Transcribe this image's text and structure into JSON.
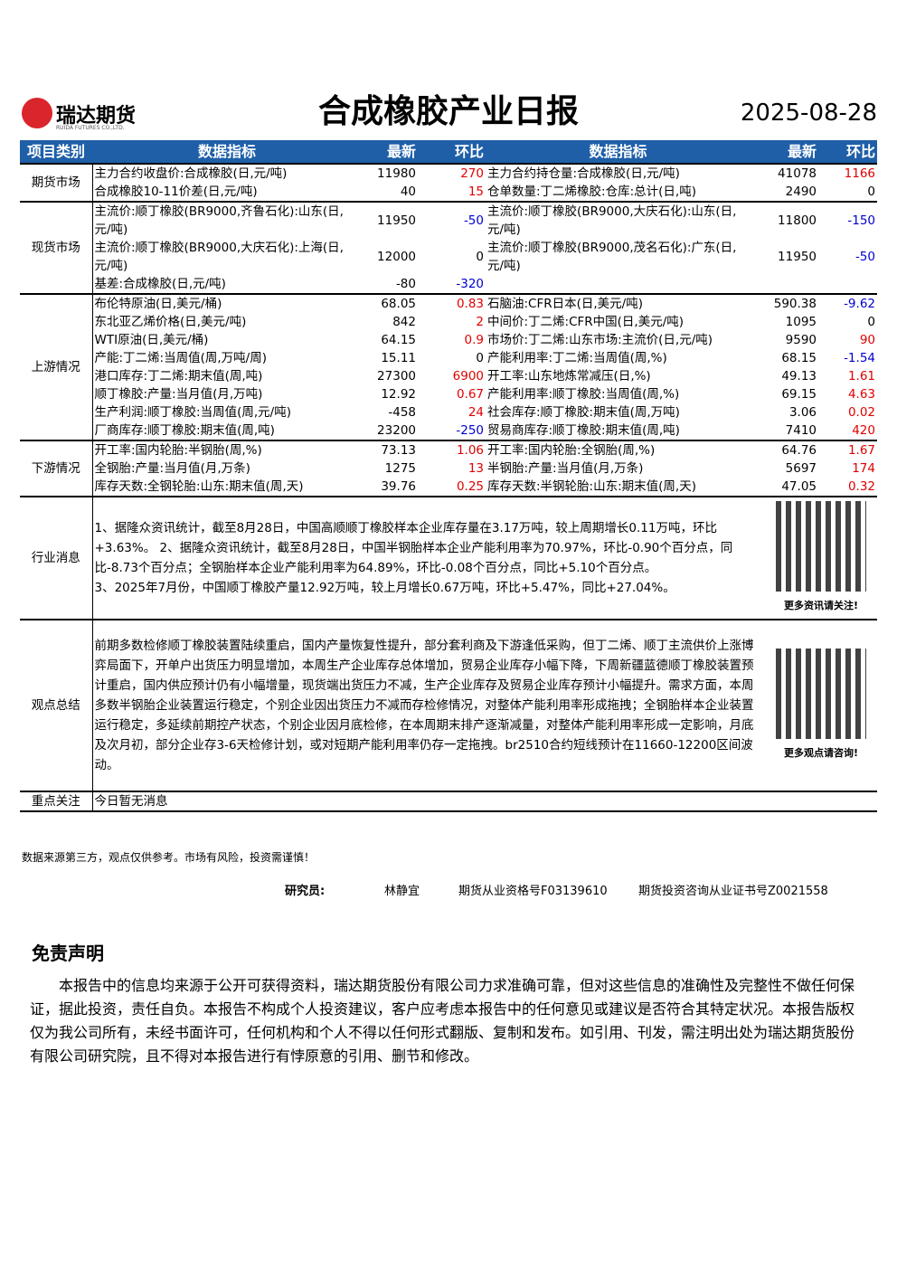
{
  "header": {
    "logo_text": "瑞达期货",
    "logo_subtext": "RUIDA FUTURES CO.,LTD.",
    "title": "合成橡胶产业日报",
    "date": "2025-08-28"
  },
  "table": {
    "headers": [
      "项目类别",
      "数据指标",
      "最新",
      "环比",
      "数据指标",
      "最新",
      "环比"
    ],
    "sections": [
      {
        "name": "期货市场",
        "rows": [
          {
            "left": {
              "label": "主力合约收盘价:合成橡胶(日,元/吨)",
              "latest": 11980,
              "change": 270
            },
            "right": {
              "label": "主力合约持仓量:合成橡胶(日,元/吨)",
              "latest": 41078,
              "change": 1166
            }
          },
          {
            "left": {
              "label": "合成橡胶10-11价差(日,元/吨)",
              "latest": 40,
              "change": 15
            },
            "right": {
              "label": "仓单数量:丁二烯橡胶:仓库:总计(日,吨)",
              "latest": 2490,
              "change": 0
            }
          }
        ]
      },
      {
        "name": "现货市场",
        "rows": [
          {
            "left": {
              "label": "主流价:顺丁橡胶(BR9000,齐鲁石化):山东(日,元/吨)",
              "latest": 11950,
              "change": -50
            },
            "right": {
              "label": "主流价:顺丁橡胶(BR9000,大庆石化):山东(日,元/吨)",
              "latest": 11800,
              "change": -150
            }
          },
          {
            "left": {
              "label": "主流价:顺丁橡胶(BR9000,大庆石化):上海(日,元/吨)",
              "latest": 12000,
              "change": 0
            },
            "right": {
              "label": "主流价:顺丁橡胶(BR9000,茂名石化):广东(日,元/吨)",
              "latest": 11950,
              "change": -50
            }
          },
          {
            "left": {
              "label": "基差:合成橡胶(日,元/吨)",
              "latest": -80,
              "change": -320
            }
          }
        ]
      },
      {
        "name": "上游情况",
        "rows": [
          {
            "left": {
              "label": "布伦特原油(日,美元/桶)",
              "latest": 68.05,
              "change": 0.83
            },
            "right": {
              "label": "石脑油:CFR日本(日,美元/吨)",
              "latest": 590.38,
              "change": -9.62
            }
          },
          {
            "left": {
              "label": "东北亚乙烯价格(日,美元/吨)",
              "latest": 842,
              "change": 2
            },
            "right": {
              "label": "中间价:丁二烯:CFR中国(日,美元/吨)",
              "latest": 1095,
              "change": 0
            }
          },
          {
            "left": {
              "label": "WTI原油(日,美元/桶)",
              "latest": 64.15,
              "change": 0.9
            },
            "right": {
              "label": "市场价:丁二烯:山东市场:主流价(日,元/吨)",
              "latest": 9590,
              "change": 90
            }
          },
          {
            "left": {
              "label": "产能:丁二烯:当周值(周,万吨/周)",
              "latest": 15.11,
              "change": 0
            },
            "right": {
              "label": "产能利用率:丁二烯:当周值(周,%)",
              "latest": 68.15,
              "change": -1.54
            }
          },
          {
            "left": {
              "label": "港口库存:丁二烯:期末值(周,吨)",
              "latest": 27300,
              "change": 6900
            },
            "right": {
              "label": "开工率:山东地炼常减压(日,%)",
              "latest": 49.13,
              "change": 1.61
            }
          },
          {
            "left": {
              "label": "顺丁橡胶:产量:当月值(月,万吨)",
              "latest": 12.92,
              "change": 0.67
            },
            "right": {
              "label": "产能利用率:顺丁橡胶:当周值(周,%)",
              "latest": 69.15,
              "change": 4.63
            }
          },
          {
            "left": {
              "label": "生产利润:顺丁橡胶:当周值(周,元/吨)",
              "latest": -458,
              "change": 24
            },
            "right": {
              "label": "社会库存:顺丁橡胶:期末值(周,万吨)",
              "latest": 3.06,
              "change": 0.02
            }
          },
          {
            "left": {
              "label": "厂商库存:顺丁橡胶:期末值(周,吨)",
              "latest": 23200,
              "change": -250
            },
            "right": {
              "label": "贸易商库存:顺丁橡胶:期末值(周,吨)",
              "latest": 7410,
              "change": 420
            }
          }
        ]
      },
      {
        "name": "下游情况",
        "rows": [
          {
            "left": {
              "label": "开工率:国内轮胎:半钢胎(周,%)",
              "latest": 73.13,
              "change": 1.06
            },
            "right": {
              "label": "开工率:国内轮胎:全钢胎(周,%)",
              "latest": 64.76,
              "change": 1.67
            }
          },
          {
            "left": {
              "label": "全钢胎:产量:当月值(月,万条)",
              "latest": 1275,
              "change": 13
            },
            "right": {
              "label": "半钢胎:产量:当月值(月,万条)",
              "latest": 5697,
              "change": 174
            }
          },
          {
            "left": {
              "label": "库存天数:全钢轮胎:山东:期末值(周,天)",
              "latest": 39.76,
              "change": 0.25
            },
            "right": {
              "label": "库存天数:半钢轮胎:山东:期末值(周,天)",
              "latest": 47.05,
              "change": 0.32
            }
          }
        ]
      }
    ],
    "news": {
      "name": "行业消息",
      "paragraphs": [
        "1、据隆众资讯统计，截至8月28日，中国高顺顺丁橡胶样本企业库存量在3.17万吨，较上周期增长0.11万吨，环比+3.63%。 2、据隆众资讯统计，截至8月28日，中国半钢胎样本企业产能利用率为70.97%，环比-0.90个百分点，同比-8.73个百分点；全钢胎样本企业产能利用率为64.89%，环比-0.08个百分点，同比+5.10个百分点。",
        "3、2025年7月份，中国顺丁橡胶产量12.92万吨，较上月增长0.67万吨，环比+5.47%，同比+27.04%。"
      ],
      "qr_caption": "更多资讯请关注!"
    },
    "summary": {
      "name": "观点总结",
      "text": "前期多数检修顺丁橡胶装置陆续重启，国内产量恢复性提升，部分套利商及下游逢低采购，但丁二烯、顺丁主流供价上涨博弈局面下，开单户出货压力明显增加，本周生产企业库存总体增加，贸易企业库存小幅下降，下周新疆蓝德顺丁橡胶装置预计重启，国内供应预计仍有小幅增量，现货端出货压力不减，生产企业库存及贸易企业库存预计小幅提升。需求方面，本周多数半钢胎企业装置运行稳定，个别企业因出货压力不减而存检修情况，对整体产能利用率形成拖拽；全钢胎样本企业装置运行稳定，多延续前期控产状态，个别企业因月底检修，在本周期末排产逐渐减量，对整体产能利用率形成一定影响，月底及次月初，部分企业存3-6天检修计划，或对短期产能利用率仍存一定拖拽。br2510合约短线预计在11660-12200区间波动。",
      "qr_caption": "更多观点请咨询!"
    },
    "focus": {
      "name": "重点关注",
      "text": "今日暂无消息"
    }
  },
  "footer": {
    "note": "数据来源第三方，观点仅供参考。市场有风险，投资需谨慎！",
    "researcher_label": "研究员:",
    "researcher": "林静宜",
    "qualification": "期货从业资格号F03139610",
    "consulting": "期货投资咨询从业证书号Z0021558"
  },
  "disclaimer": {
    "title": "免责声明",
    "text": "本报告中的信息均来源于公开可获得资料，瑞达期货股份有限公司力求准确可靠，但对这些信息的准确性及完整性不做任何保证，据此投资，责任自负。本报告不构成个人投资建议，客户应考虑本报告中的任何意见或建议是否符合其特定状况。本报告版权仅为我公司所有，未经书面许可，任何机构和个人不得以任何形式翻版、复制和发布。如引用、刊发，需注明出处为瑞达期货股份有限公司研究院，且不得对本报告进行有悖原意的引用、删节和修改。"
  }
}
